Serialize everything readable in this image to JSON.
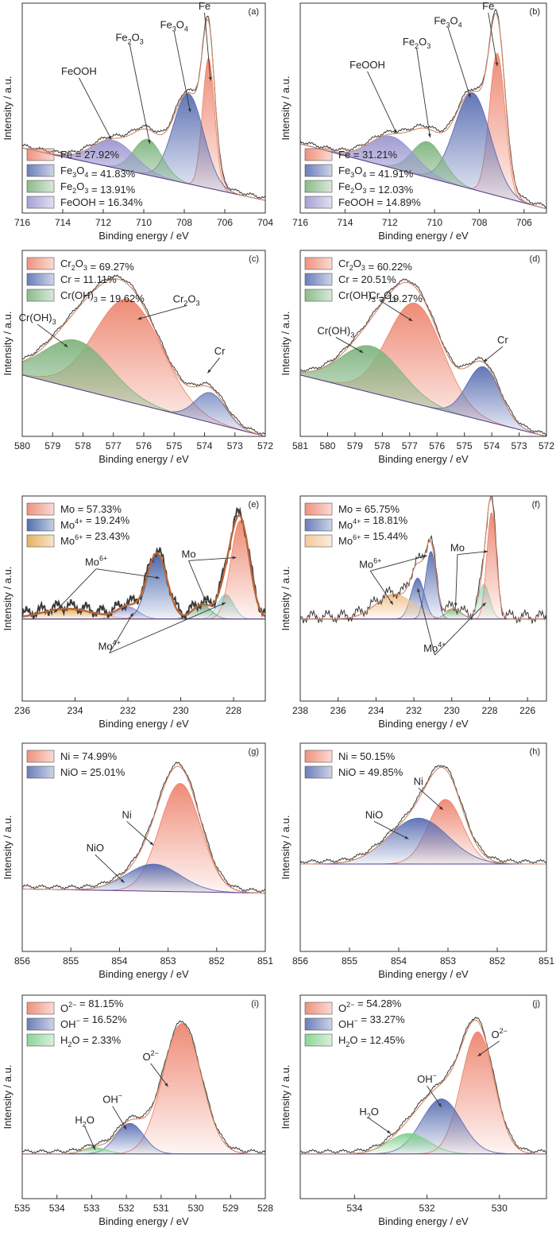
{
  "common": {
    "xlabel": "Binding energy / eV",
    "ylabel": "Intensity / a.u."
  },
  "chart_data": [
    {
      "id": "a",
      "type": "area",
      "panel_label": "(a)",
      "xlim": [
        716,
        704
      ],
      "xticks": [
        716,
        714,
        712,
        710,
        708,
        706,
        704
      ],
      "ylim": [
        0,
        1
      ],
      "baseline": [
        0.31,
        0.06
      ],
      "series": [
        {
          "name": "Fe",
          "percent": "27.92%",
          "center": 706.8,
          "width": 0.3,
          "height": 0.62,
          "color": "#ee8670"
        },
        {
          "name": "Fe3O4",
          "percent": "41.83%",
          "center": 707.8,
          "width": 0.75,
          "height": 0.43,
          "color": "#5a6fb3"
        },
        {
          "name": "Fe2O3",
          "percent": "13.91%",
          "center": 709.8,
          "width": 0.7,
          "height": 0.17,
          "color": "#7fb47f"
        },
        {
          "name": "FeOOH",
          "percent": "16.34%",
          "center": 711.5,
          "width": 1.05,
          "height": 0.13,
          "color": "#9a97d0"
        }
      ],
      "annotations": [
        {
          "text": "FeOOH",
          "tx": 713.2,
          "ty": 0.66,
          "x": 711.6,
          "y": 0.35
        },
        {
          "text": "Fe2O3",
          "tx": 710.7,
          "ty": 0.82,
          "x": 709.7,
          "y": 0.33
        },
        {
          "text": "Fe3O4",
          "tx": 708.5,
          "ty": 0.88,
          "x": 707.7,
          "y": 0.48
        },
        {
          "text": "Fe",
          "tx": 707.0,
          "ty": 0.97,
          "x": 706.7,
          "y": 0.63
        }
      ]
    },
    {
      "id": "b",
      "type": "area",
      "panel_label": "(b)",
      "xlim": [
        716,
        705
      ],
      "xticks": [
        716,
        714,
        712,
        710,
        708,
        706
      ],
      "ylim": [
        0,
        1
      ],
      "baseline": [
        0.33,
        0.02
      ],
      "series": [
        {
          "name": "Fe",
          "percent": "31.21%",
          "center": 707.2,
          "width": 0.35,
          "height": 0.68,
          "color": "#ee8670"
        },
        {
          "name": "Fe3O4",
          "percent": "41.91%",
          "center": 708.3,
          "width": 0.8,
          "height": 0.46,
          "color": "#5a6fb3"
        },
        {
          "name": "Fe2O3",
          "percent": "12.03%",
          "center": 710.3,
          "width": 0.7,
          "height": 0.17,
          "color": "#7fb47f"
        },
        {
          "name": "FeOOH",
          "percent": "14.89%",
          "center": 711.9,
          "width": 1.0,
          "height": 0.15,
          "color": "#9a97d0"
        }
      ],
      "annotations": [
        {
          "text": "FeOOH",
          "tx": 713.0,
          "ty": 0.69,
          "x": 711.7,
          "y": 0.38
        },
        {
          "text": "Fe2O3",
          "tx": 710.8,
          "ty": 0.8,
          "x": 710.2,
          "y": 0.36
        },
        {
          "text": "Fe3O4",
          "tx": 709.4,
          "ty": 0.9,
          "x": 708.4,
          "y": 0.55
        },
        {
          "text": "Fe",
          "tx": 707.6,
          "ty": 0.97,
          "x": 707.2,
          "y": 0.7
        }
      ]
    },
    {
      "id": "c",
      "type": "area",
      "panel_label": "(c)",
      "xlim": [
        580,
        572
      ],
      "xticks": [
        580,
        579,
        578,
        577,
        576,
        575,
        574,
        573,
        572
      ],
      "ylim": [
        0,
        1
      ],
      "baseline": [
        0.33,
        0.0
      ],
      "series": [
        {
          "name": "Cr2O3",
          "percent": "69.27%",
          "center": 576.5,
          "width": 1.1,
          "height": 0.55,
          "color": "#ee8670"
        },
        {
          "name": "Cr",
          "percent": "11.11%",
          "center": 573.8,
          "width": 0.5,
          "height": 0.16,
          "color": "#5a6fb3"
        },
        {
          "name": "Cr(OH)3",
          "percent": "19.62%",
          "center": 578.2,
          "width": 1.1,
          "height": 0.26,
          "color": "#7fb47f"
        }
      ],
      "annotations": [
        {
          "text": "Cr2O3",
          "tx": 574.6,
          "ty": 0.72,
          "x": 576.2,
          "y": 0.63
        },
        {
          "text": "Cr(OH)3",
          "tx": 579.5,
          "ty": 0.62,
          "x": 578.5,
          "y": 0.48
        },
        {
          "text": "Cr",
          "tx": 573.5,
          "ty": 0.44,
          "x": 573.9,
          "y": 0.34
        }
      ]
    },
    {
      "id": "d",
      "type": "area",
      "panel_label": "(d)",
      "xlim": [
        581,
        572
      ],
      "xticks": [
        581,
        580,
        579,
        578,
        577,
        576,
        575,
        574,
        573,
        572
      ],
      "ylim": [
        0,
        1
      ],
      "baseline": [
        0.33,
        0.0
      ],
      "series": [
        {
          "name": "Cr2O3",
          "percent": "60.22%",
          "center": 576.8,
          "width": 1.0,
          "height": 0.54,
          "color": "#ee8670"
        },
        {
          "name": "Cr",
          "percent": "20.51%",
          "center": 574.3,
          "width": 0.6,
          "height": 0.29,
          "color": "#5a6fb3"
        },
        {
          "name": "Cr(OH)3",
          "percent": "19.27%",
          "center": 578.4,
          "width": 1.1,
          "height": 0.25,
          "color": "#7fb47f"
        }
      ],
      "annotations": [
        {
          "text": "Cr2O3",
          "tx": 578.0,
          "ty": 0.74,
          "x": 576.9,
          "y": 0.62
        },
        {
          "text": "Cr(OH)3",
          "tx": 579.7,
          "ty": 0.55,
          "x": 578.7,
          "y": 0.45
        },
        {
          "text": "Cr",
          "tx": 573.6,
          "ty": 0.5,
          "x": 574.3,
          "y": 0.4
        }
      ]
    },
    {
      "id": "e",
      "type": "area",
      "panel_label": "(e)",
      "xlim": [
        236,
        226.8
      ],
      "xticks": [
        236,
        234,
        232,
        230,
        228
      ],
      "ylim": [
        0,
        1
      ],
      "baseline": [
        0.4,
        0.4
      ],
      "series": [
        {
          "name": "Mo",
          "percent": "57.33%",
          "center": 227.75,
          "width": 0.35,
          "height": 0.48,
          "color": "#ee8670"
        },
        {
          "name": "Mo4+",
          "percent": "19.24%",
          "center": 230.9,
          "width": 0.38,
          "height": 0.32,
          "color": "#3e5ea8"
        },
        {
          "name": "Mo6+",
          "percent": "23.43%",
          "center": 234.3,
          "width": 1.0,
          "height": 0.05,
          "color": "#e3a94e"
        }
      ],
      "extra_components": [
        {
          "center": 228.3,
          "width": 0.3,
          "height": 0.12,
          "color": "#8fd3cf"
        },
        {
          "center": 229.2,
          "width": 0.35,
          "height": 0.07,
          "color": "#6fa77a"
        },
        {
          "center": 232.0,
          "width": 0.4,
          "height": 0.06,
          "color": "#9a97d0"
        }
      ],
      "annotations": [
        {
          "text": "Mo6+",
          "tx": 233.2,
          "ty": 0.66,
          "x": 234.8,
          "y": 0.43
        },
        {
          "text": "Mo6+",
          "tx": 233.2,
          "ty": 0.66,
          "x": 230.8,
          "y": 0.6
        },
        {
          "text": "Mo",
          "tx": 229.7,
          "ty": 0.7,
          "x": 229.0,
          "y": 0.47
        },
        {
          "text": "Mo",
          "tx": 229.7,
          "ty": 0.7,
          "x": 227.9,
          "y": 0.7
        },
        {
          "text": "Mo4+",
          "tx": 232.7,
          "ty": 0.25,
          "x": 231.8,
          "y": 0.43
        },
        {
          "text": "Mo4+",
          "tx": 232.7,
          "ty": 0.25,
          "x": 228.3,
          "y": 0.48
        }
      ]
    },
    {
      "id": "f",
      "type": "area",
      "panel_label": "(f)",
      "xlim": [
        238,
        225
      ],
      "xticks": [
        238,
        236,
        234,
        232,
        230,
        228,
        226
      ],
      "ylim": [
        0,
        1
      ],
      "baseline": [
        0.4,
        0.4
      ],
      "series": [
        {
          "name": "Mo",
          "percent": "65.75%",
          "center": 227.9,
          "width": 0.25,
          "height": 0.52,
          "color": "#ee8670"
        },
        {
          "name": "Mo4+",
          "percent": "18.81%",
          "center": 231.1,
          "width": 0.28,
          "height": 0.33,
          "color": "#5a6fb3"
        },
        {
          "name": "Mo6+",
          "percent": "15.44%",
          "center": 233.0,
          "width": 1.0,
          "height": 0.12,
          "color": "#f2c28d"
        }
      ],
      "extra_components": [
        {
          "center": 228.3,
          "width": 0.3,
          "height": 0.17,
          "color": "#9ed8c6"
        },
        {
          "center": 229.9,
          "width": 0.4,
          "height": 0.05,
          "color": "#7fb47f"
        },
        {
          "center": 231.8,
          "width": 0.35,
          "height": 0.2,
          "color": "#5a6fb3"
        }
      ],
      "annotations": [
        {
          "text": "Mo6+",
          "tx": 234.3,
          "ty": 0.65,
          "x": 233.1,
          "y": 0.47
        },
        {
          "text": "Mo6+",
          "tx": 234.3,
          "ty": 0.65,
          "x": 231.3,
          "y": 0.71
        },
        {
          "text": "Mo",
          "tx": 229.7,
          "ty": 0.73,
          "x": 229.8,
          "y": 0.46
        },
        {
          "text": "Mo",
          "tx": 229.7,
          "ty": 0.73,
          "x": 228.1,
          "y": 0.73
        },
        {
          "text": "Mo4+",
          "tx": 230.9,
          "ty": 0.24,
          "x": 231.8,
          "y": 0.55
        },
        {
          "text": "Mo4+",
          "tx": 230.9,
          "ty": 0.24,
          "x": 228.2,
          "y": 0.48
        }
      ]
    },
    {
      "id": "g",
      "type": "area",
      "panel_label": "(g)",
      "xlim": [
        856,
        851
      ],
      "xticks": [
        856,
        855,
        854,
        853,
        852,
        851
      ],
      "ylim": [
        0,
        1
      ],
      "baseline": [
        0.3,
        0.28
      ],
      "series": [
        {
          "name": "Ni",
          "percent": "74.99%",
          "center": 852.75,
          "width": 0.42,
          "height": 0.52,
          "color": "#ee8670"
        },
        {
          "name": "NiO",
          "percent": "25.01%",
          "center": 853.3,
          "width": 0.55,
          "height": 0.13,
          "color": "#5a6fb3"
        }
      ],
      "annotations": [
        {
          "text": "Ni",
          "tx": 853.85,
          "ty": 0.64,
          "x": 853.3,
          "y": 0.51
        },
        {
          "text": "NiO",
          "tx": 854.5,
          "ty": 0.48,
          "x": 853.9,
          "y": 0.33
        }
      ]
    },
    {
      "id": "h",
      "type": "area",
      "panel_label": "(h)",
      "xlim": [
        856,
        851
      ],
      "xticks": [
        856,
        855,
        854,
        853,
        852,
        851
      ],
      "ylim": [
        0,
        1
      ],
      "baseline": [
        0.42,
        0.42
      ],
      "series": [
        {
          "name": "Ni",
          "percent": "50.15%",
          "center": 853.05,
          "width": 0.35,
          "height": 0.31,
          "color": "#ee8670"
        },
        {
          "name": "NiO",
          "percent": "49.85%",
          "center": 853.6,
          "width": 0.6,
          "height": 0.22,
          "color": "#5a6fb3"
        }
      ],
      "annotations": [
        {
          "text": "Ni",
          "tx": 853.6,
          "ty": 0.8,
          "x": 853.1,
          "y": 0.68
        },
        {
          "text": "NiO",
          "tx": 854.5,
          "ty": 0.64,
          "x": 853.8,
          "y": 0.54
        }
      ]
    },
    {
      "id": "i",
      "type": "area",
      "panel_label": "(i)",
      "xlim": [
        535,
        528
      ],
      "xticks": [
        535,
        534,
        533,
        532,
        531,
        530,
        529,
        528
      ],
      "ylim": [
        0,
        1
      ],
      "baseline": [
        0.22,
        0.22
      ],
      "series": [
        {
          "name": "O2−",
          "percent": "81.15%",
          "center": 530.4,
          "width": 0.55,
          "height": 0.64,
          "color": "#ee8670"
        },
        {
          "name": "OH−",
          "percent": "16.52%",
          "center": 531.9,
          "width": 0.4,
          "height": 0.15,
          "color": "#5a6fb3"
        },
        {
          "name": "H2O",
          "percent": "2.33%",
          "center": 532.9,
          "width": 0.35,
          "height": 0.03,
          "color": "#7fd08a"
        }
      ],
      "annotations": [
        {
          "text": "O2−",
          "tx": 531.3,
          "ty": 0.68,
          "x": 530.8,
          "y": 0.55
        },
        {
          "text": "OH−",
          "tx": 532.4,
          "ty": 0.47,
          "x": 532.0,
          "y": 0.34
        },
        {
          "text": "H2O",
          "tx": 533.2,
          "ty": 0.37,
          "x": 532.9,
          "y": 0.24
        }
      ]
    },
    {
      "id": "j",
      "type": "area",
      "panel_label": "(j)",
      "xlim": [
        535.5,
        528.7
      ],
      "xticks": [
        534,
        532,
        530
      ],
      "ylim": [
        0,
        1
      ],
      "baseline": [
        0.22,
        0.22
      ],
      "series": [
        {
          "name": "O2−",
          "percent": "54.28%",
          "center": 530.6,
          "width": 0.45,
          "height": 0.6,
          "color": "#ee8670"
        },
        {
          "name": "OH−",
          "percent": "33.27%",
          "center": 531.6,
          "width": 0.55,
          "height": 0.27,
          "color": "#5a6fb3"
        },
        {
          "name": "H2O",
          "percent": "12.45%",
          "center": 532.5,
          "width": 0.55,
          "height": 0.1,
          "color": "#7fd08a"
        }
      ],
      "annotations": [
        {
          "text": "O2−",
          "tx": 530.0,
          "ty": 0.79,
          "x": 530.6,
          "y": 0.7
        },
        {
          "text": "OH−",
          "tx": 532.0,
          "ty": 0.57,
          "x": 531.6,
          "y": 0.45
        },
        {
          "text": "H2O",
          "tx": 533.6,
          "ty": 0.41,
          "x": 533.0,
          "y": 0.32
        }
      ]
    }
  ]
}
